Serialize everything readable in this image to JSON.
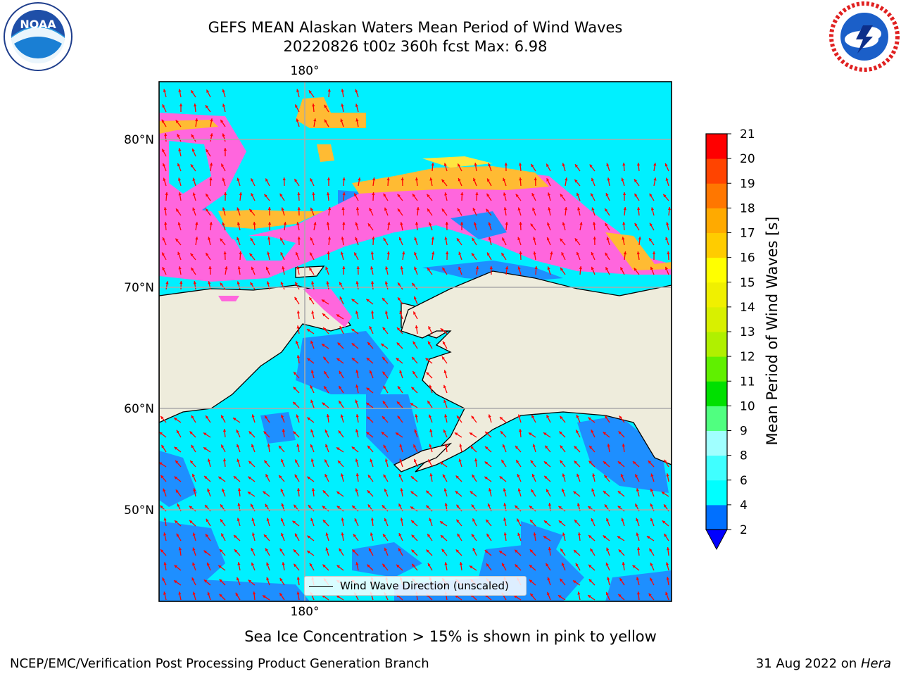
{
  "title": {
    "line1": "GEFS MEAN Alaskan Waters Mean Period of Wind Waves",
    "line2": "20220826 t00z 360h fcst   Max: 6.98"
  },
  "logos": {
    "left": {
      "name": "NOAA",
      "icon": "noaa-logo"
    },
    "right": {
      "name": "NATIONAL WEATHER SERVICE",
      "icon": "nws-logo"
    }
  },
  "map": {
    "lon_labels": [
      "180°",
      "180°"
    ],
    "lat_labels": [
      "80°N",
      "70°N",
      "60°N",
      "50°N"
    ],
    "legend_label": "Wind Wave Direction (unscaled)",
    "colors": {
      "land": "#eeecdc",
      "ice_pink": "#ff66dd",
      "ice_orange": "#ffbb33",
      "ice_yellow": "#ffe640",
      "wave_low": "#1e8fff",
      "wave_mid": "#00f0ff",
      "vector": "#ff0000"
    }
  },
  "colorbar": {
    "title": "Mean Period of Wind Waves [s]",
    "ticks": [
      "2",
      "4",
      "6",
      "8",
      "9",
      "10",
      "11",
      "12",
      "13",
      "14",
      "15",
      "16",
      "17",
      "18",
      "19",
      "20",
      "21"
    ],
    "colors": [
      "#0070ff",
      "#00ffff",
      "#40ffff",
      "#a0ffff",
      "#50ff80",
      "#00e000",
      "#60f000",
      "#b0f000",
      "#d8f000",
      "#f0f000",
      "#ffff00",
      "#ffcc00",
      "#ffaa00",
      "#ff7700",
      "#ff4400",
      "#ff0000"
    ],
    "under_color": "#0000ff"
  },
  "caption": "Sea Ice Concentration > 15% is shown in pink to yellow",
  "footer": {
    "left": "NCEP/EMC/Verification Post Processing Product Generation Branch",
    "right_prefix": "31 Aug 2022 on ",
    "right_italic": "Hera"
  }
}
